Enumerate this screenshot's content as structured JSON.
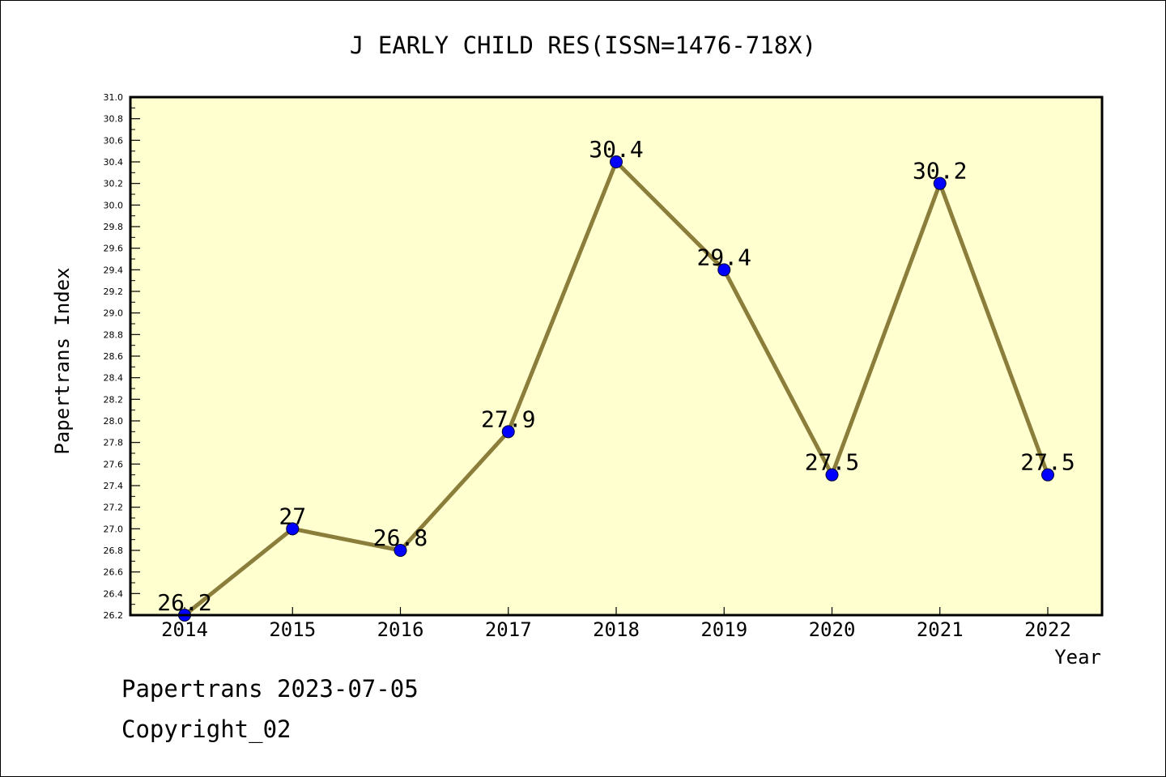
{
  "chart_data": {
    "type": "line",
    "title": "J EARLY CHILD RES(ISSN=1476-718X)",
    "xlabel": "Year",
    "ylabel": "Papertrans Index",
    "x": [
      "2014",
      "2015",
      "2016",
      "2017",
      "2018",
      "2019",
      "2020",
      "2021",
      "2022"
    ],
    "values": [
      26.2,
      27,
      26.8,
      27.9,
      30.4,
      29.4,
      27.5,
      30.2,
      27.5
    ],
    "value_labels": [
      "26.2",
      "27",
      "26.8",
      "27.9",
      "30.4",
      "29.4",
      "27.5",
      "30.2",
      "27.5"
    ],
    "ylim": [
      26.2,
      31.0
    ],
    "ytick_step": 0.2,
    "yticks": [
      "26.2",
      "26.4",
      "26.6",
      "26.8",
      "27.0",
      "27.2",
      "27.4",
      "27.6",
      "27.8",
      "28.0",
      "28.2",
      "28.4",
      "28.6",
      "28.8",
      "29.0",
      "29.2",
      "29.4",
      "29.6",
      "29.8",
      "30.0",
      "30.2",
      "30.4",
      "30.6",
      "30.8",
      "31.0"
    ],
    "grid": false,
    "colors": {
      "plot_background": "#ffffd0",
      "line": "#8b7d3a",
      "marker": "#0000ff"
    }
  },
  "footer": {
    "date_text": "Papertrans 2023-07-05",
    "copyright": "Copyright_02"
  }
}
